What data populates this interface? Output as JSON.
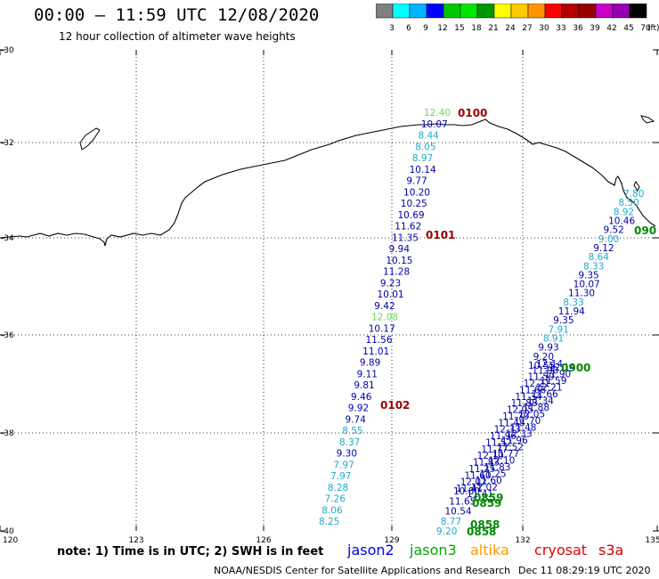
{
  "header": {
    "title": "00:00 – 11:59 UTC 12/08/2020",
    "subtitle": "12 hour collection of altimeter wave heights"
  },
  "legend": {
    "colors": [
      "#808080",
      "#00ffff",
      "#00b4ff",
      "#0000ff",
      "#00c800",
      "#00e600",
      "#009600",
      "#ffff00",
      "#ffc800",
      "#ff9600",
      "#ff0000",
      "#b40000",
      "#960000",
      "#c800c8",
      "#9600b4",
      "#000000"
    ],
    "labels": [
      "3",
      "6",
      "9",
      "12",
      "15",
      "18",
      "21",
      "24",
      "27",
      "30",
      "33",
      "36",
      "39",
      "42",
      "45",
      "70",
      "(ft)"
    ]
  },
  "axes": {
    "x_ticks": [
      "120",
      "123",
      "126",
      "129",
      "132",
      "135"
    ],
    "y_ticks": [
      "-30",
      "-32",
      "-34",
      "-36",
      "-38",
      "-40"
    ]
  },
  "tracks": {
    "track_a": [
      {
        "t": "12.40",
        "c": "#66dd55"
      },
      {
        "t": "10.07",
        "c": "#0000aa"
      },
      {
        "t": "8.44",
        "c": "#22aacc"
      },
      {
        "t": "8.05",
        "c": "#22aacc"
      },
      {
        "t": "8.97",
        "c": "#22aacc"
      },
      {
        "t": "10.14",
        "c": "#0000aa"
      },
      {
        "t": "9.77",
        "c": "#0000aa"
      },
      {
        "t": "10.20",
        "c": "#0000aa"
      },
      {
        "t": "10.25",
        "c": "#0000aa"
      },
      {
        "t": "10.69",
        "c": "#0000aa"
      },
      {
        "t": "11.62",
        "c": "#0000aa"
      },
      {
        "t": "11.35",
        "c": "#0000aa"
      },
      {
        "t": "9.94",
        "c": "#0000aa"
      },
      {
        "t": "10.15",
        "c": "#0000aa"
      },
      {
        "t": "11.28",
        "c": "#0000aa"
      },
      {
        "t": "9.23",
        "c": "#0000aa"
      },
      {
        "t": "10.01",
        "c": "#0000aa"
      },
      {
        "t": "9.42",
        "c": "#0000aa"
      },
      {
        "t": "12.08",
        "c": "#66dd55"
      },
      {
        "t": "10.17",
        "c": "#0000aa"
      },
      {
        "t": "11.56",
        "c": "#0000aa"
      },
      {
        "t": "11.01",
        "c": "#0000aa"
      },
      {
        "t": "9.89",
        "c": "#0000aa"
      },
      {
        "t": "9.11",
        "c": "#0000aa"
      },
      {
        "t": "9.81",
        "c": "#0000aa"
      },
      {
        "t": "9.46",
        "c": "#0000aa"
      },
      {
        "t": "9.92",
        "c": "#0000aa"
      },
      {
        "t": "9.74",
        "c": "#0000aa"
      },
      {
        "t": "8.55",
        "c": "#22aacc"
      },
      {
        "t": "8.37",
        "c": "#22aacc"
      },
      {
        "t": "9.30",
        "c": "#0000aa"
      },
      {
        "t": "7.97",
        "c": "#22aacc"
      },
      {
        "t": "7.97",
        "c": "#22aacc"
      },
      {
        "t": "8.28",
        "c": "#22aacc"
      },
      {
        "t": "7.26",
        "c": "#22aacc"
      },
      {
        "t": "8.06",
        "c": "#22aacc"
      },
      {
        "t": "8.25",
        "c": "#22aacc"
      }
    ],
    "track_b": [
      {
        "t": "7.80",
        "c": "#22aacc"
      },
      {
        "t": "8.50",
        "c": "#22aacc"
      },
      {
        "t": "8.92",
        "c": "#22aacc"
      },
      {
        "t": "10.46",
        "c": "#0000aa"
      },
      {
        "t": "9.52",
        "c": "#0000aa"
      },
      {
        "t": "9.00",
        "c": "#22aacc"
      },
      {
        "t": "9.12",
        "c": "#0000aa"
      },
      {
        "t": "8.64",
        "c": "#22aacc"
      },
      {
        "t": "8.33",
        "c": "#22aacc"
      },
      {
        "t": "9.35",
        "c": "#0000aa"
      },
      {
        "t": "10.07",
        "c": "#0000aa"
      },
      {
        "t": "11.30",
        "c": "#0000aa"
      },
      {
        "t": "8.33",
        "c": "#22aacc"
      },
      {
        "t": "11.94",
        "c": "#0000aa"
      },
      {
        "t": "9.35",
        "c": "#0000aa"
      },
      {
        "t": "7.91",
        "c": "#22aacc"
      },
      {
        "t": "8.91",
        "c": "#22aacc"
      },
      {
        "t": "9.93",
        "c": "#0000aa"
      },
      {
        "t": "9.20",
        "c": "#0000aa"
      },
      {
        "t": "10.55",
        "c": "#0000aa"
      }
    ],
    "track_c_start": [
      {
        "t": "9.20",
        "c": "#22aacc"
      },
      {
        "t": "8.77",
        "c": "#22aacc"
      },
      {
        "t": "10.54",
        "c": "#0000aa"
      },
      {
        "t": "11.65",
        "c": "#0000aa"
      },
      {
        "t": "10.80",
        "c": "#0000aa"
      }
    ]
  },
  "time_labels": [
    {
      "t": "0100",
      "c": "#990000"
    },
    {
      "t": "0101",
      "c": "#990000"
    },
    {
      "t": "0102",
      "c": "#990000"
    },
    {
      "t": "0900",
      "c": "#008800"
    },
    {
      "t": "090",
      "c": "#008800"
    },
    {
      "t": "0859",
      "c": "#008800"
    },
    {
      "t": "0859",
      "c": "#008800"
    },
    {
      "t": "0858",
      "c": "#008800"
    },
    {
      "t": "0858",
      "c": "#008800"
    }
  ],
  "footer": {
    "note": "note:  1) Time is in UTC;  2) SWH is in feet",
    "missions": [
      {
        "name": "jason2",
        "color": "#0000ee"
      },
      {
        "name": "jason3",
        "color": "#00aa00"
      },
      {
        "name": "altika",
        "color": "#ff9900"
      },
      {
        "name": "cryosat",
        "color": "#ee0000"
      },
      {
        "name": "s3a",
        "color": "#cc0000"
      }
    ],
    "credit": "NOAA/NESDIS Center for Satellite Applications and Research",
    "date": "Dec 11 08:29:19 UTC 2020"
  }
}
